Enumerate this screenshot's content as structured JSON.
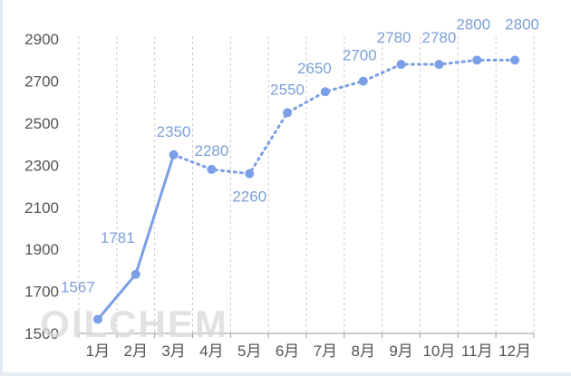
{
  "chart_data": {
    "type": "line",
    "categories": [
      "1月",
      "2月",
      "3月",
      "4月",
      "5月",
      "6月",
      "7月",
      "8月",
      "9月",
      "10月",
      "11月",
      "12月"
    ],
    "series": [
      {
        "values": [
          1567,
          1781,
          2350,
          2280,
          2260,
          2550,
          2650,
          2700,
          2780,
          2780,
          2800,
          2800
        ],
        "solid_points": 3,
        "color": "#7b9fe6"
      }
    ],
    "data_labels": [
      "1567",
      "1781",
      "2350",
      "2280",
      "2260",
      "2550",
      "2650",
      "2700",
      "2780",
      "2780",
      "2800",
      "2800"
    ],
    "ylim": [
      1500,
      3000
    ],
    "yticks": [
      1500,
      1700,
      1900,
      2100,
      2300,
      2500,
      2700,
      2900
    ],
    "grid": "vertical dashed",
    "title": "",
    "xlabel": "",
    "ylabel": ""
  },
  "watermark": "OILCHEM",
  "colors": {
    "series": "#7b9fe6",
    "label": "#7b9fd8",
    "grid": "#cccccc",
    "axis": "#999999"
  }
}
